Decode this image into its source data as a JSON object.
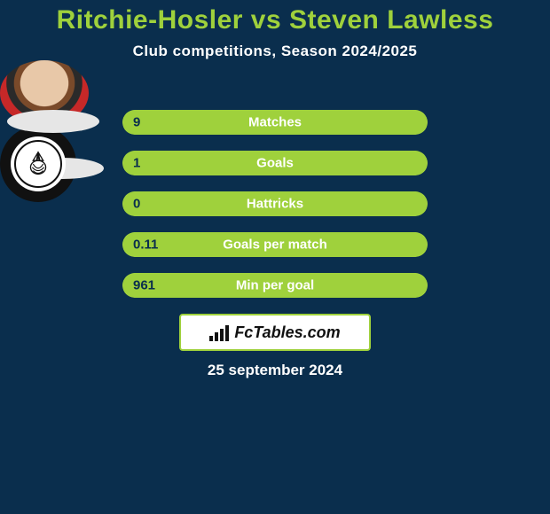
{
  "background_color": "#0a2e4d",
  "title": {
    "text": "Ritchie-Hosler vs Steven Lawless",
    "color": "#9fd13c",
    "fontsize": 30
  },
  "subtitle": {
    "text": "Club competitions, Season 2024/2025",
    "color": "#ffffff",
    "fontsize": 17
  },
  "bars": {
    "fill_color": "#9fd13c",
    "bg_color": "#9fd13c",
    "border_radius": 14,
    "value_color": "#0a2e4d",
    "label_color": "#ffffff",
    "label_fontsize": 15,
    "value_fontsize": 15,
    "items": [
      {
        "label": "Matches",
        "value": "9",
        "fill_pct": 100
      },
      {
        "label": "Goals",
        "value": "1",
        "fill_pct": 100
      },
      {
        "label": "Hattricks",
        "value": "0",
        "fill_pct": 100
      },
      {
        "label": "Goals per match",
        "value": "0.11",
        "fill_pct": 100
      },
      {
        "label": "Min per goal",
        "value": "961",
        "fill_pct": 100
      }
    ]
  },
  "badge": {
    "text": "FcTables.com",
    "border_color": "#9fd13c",
    "text_color": "#111111",
    "bg_color": "#ffffff",
    "fontsize": 18
  },
  "date": {
    "text": "25 september 2024",
    "color": "#ffffff",
    "fontsize": 17
  },
  "avatars": {
    "left_placeholder_color": "#e6e6e6",
    "club_badge_bg": "#111111"
  }
}
